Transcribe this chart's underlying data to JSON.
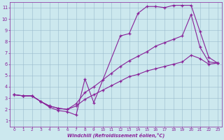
{
  "xlabel": "Windchill (Refroidissement éolien,°C)",
  "bg_color": "#cce8ee",
  "line_color": "#882299",
  "grid_color": "#99bbcc",
  "xlim": [
    -0.5,
    23.5
  ],
  "ylim": [
    0.5,
    11.5
  ],
  "xticks": [
    0,
    1,
    2,
    3,
    4,
    5,
    6,
    7,
    8,
    9,
    10,
    11,
    12,
    13,
    14,
    15,
    16,
    17,
    18,
    19,
    20,
    21,
    22,
    23
  ],
  "yticks": [
    1,
    2,
    3,
    4,
    5,
    6,
    7,
    8,
    9,
    10,
    11
  ],
  "line1_x": [
    0,
    1,
    2,
    3,
    4,
    5,
    6,
    7,
    8,
    9,
    12,
    13,
    14,
    15,
    16,
    17,
    18,
    19,
    20,
    21,
    22,
    23
  ],
  "line1_y": [
    3.3,
    3.2,
    3.2,
    2.7,
    2.2,
    1.9,
    1.8,
    1.5,
    4.7,
    2.6,
    8.5,
    8.7,
    10.5,
    11.1,
    11.1,
    11.0,
    11.2,
    11.2,
    11.2,
    8.9,
    6.6,
    6.1
  ],
  "line2_x": [
    0,
    1,
    2,
    3,
    4,
    5,
    6,
    7,
    8,
    9,
    10,
    11,
    12,
    13,
    14,
    15,
    16,
    17,
    18,
    19,
    20,
    21,
    22,
    23
  ],
  "line2_y": [
    3.3,
    3.2,
    3.2,
    2.7,
    2.3,
    2.1,
    2.0,
    2.5,
    3.5,
    4.0,
    4.6,
    5.2,
    5.8,
    6.3,
    6.7,
    7.1,
    7.6,
    7.9,
    8.2,
    8.5,
    10.4,
    7.5,
    6.2,
    6.1
  ],
  "line3_x": [
    0,
    1,
    2,
    3,
    4,
    5,
    6,
    7,
    8,
    9,
    10,
    11,
    12,
    13,
    14,
    15,
    16,
    17,
    18,
    19,
    20,
    21,
    22,
    23
  ],
  "line3_y": [
    3.3,
    3.2,
    3.2,
    2.7,
    2.3,
    2.1,
    2.0,
    2.3,
    2.9,
    3.3,
    3.7,
    4.1,
    4.5,
    4.9,
    5.1,
    5.4,
    5.6,
    5.8,
    6.0,
    6.2,
    6.8,
    6.5,
    6.0,
    6.1
  ]
}
